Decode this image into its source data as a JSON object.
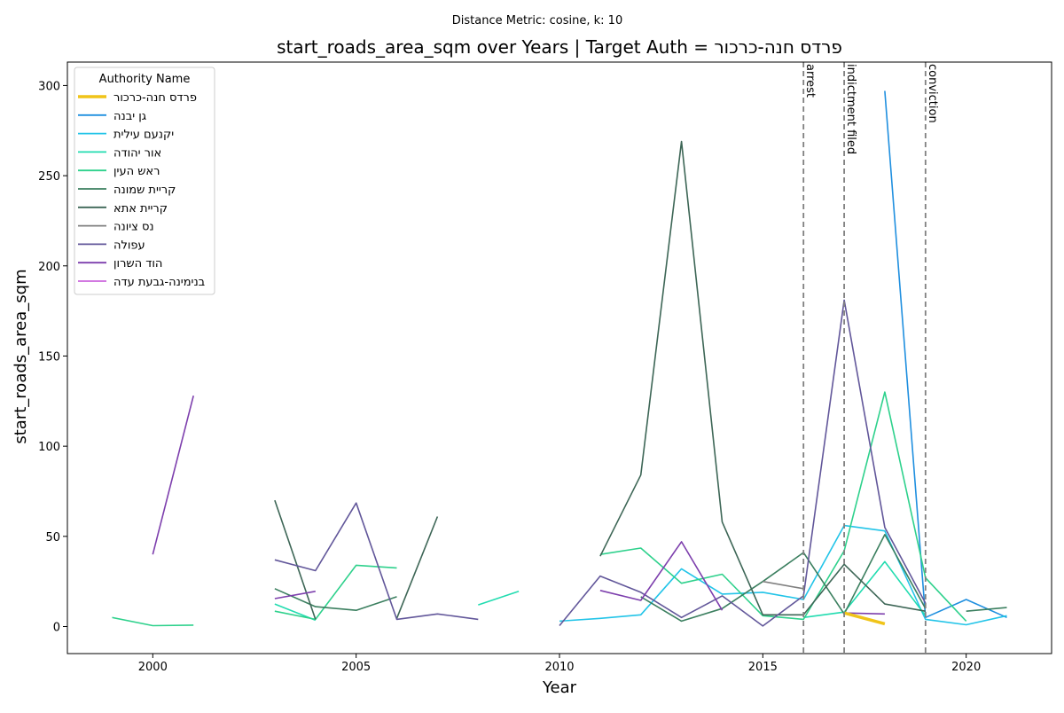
{
  "chart_data": {
    "type": "line",
    "suptitle": "Distance Metric: cosine, k: 10",
    "title": "start_roads_area_sqm over Years | Target Auth = פרדס חנה-כרכור",
    "xlabel": "Year",
    "ylabel": "start_roads_area_sqm",
    "xlim": [
      1997.9,
      2022.1
    ],
    "ylim": [
      -15,
      313
    ],
    "xticks": [
      2000,
      2005,
      2010,
      2015,
      2020
    ],
    "yticks": [
      0,
      50,
      100,
      150,
      200,
      250,
      300
    ],
    "grid": false,
    "legend": {
      "title": "Authority Name",
      "placement": "top-left"
    },
    "events": [
      {
        "x": 2016,
        "label": "arrest"
      },
      {
        "x": 2017,
        "label": "indictment filed"
      },
      {
        "x": 2019,
        "label": "conviction"
      }
    ],
    "series": [
      {
        "name": "פרדס חנה-כרכור",
        "color": "#f0c419",
        "emphasis": true,
        "segments": [
          [
            [
              2017,
              7.5
            ],
            [
              2018,
              1.5
            ]
          ]
        ]
      },
      {
        "name": "גן יבנה",
        "color": "#1f8fdf",
        "segments": [
          [
            [
              2018,
              297
            ],
            [
              2019,
              5
            ],
            [
              2020,
              15
            ],
            [
              2021,
              5
            ]
          ]
        ]
      },
      {
        "name": "יקנעם עילית",
        "color": "#22c4e8",
        "segments": [
          [
            [
              2010,
              3
            ],
            [
              2011,
              4.5
            ],
            [
              2012,
              6.5
            ],
            [
              2013,
              32
            ],
            [
              2014,
              18
            ],
            [
              2015,
              19
            ],
            [
              2016,
              15
            ],
            [
              2017,
              56
            ],
            [
              2018,
              53
            ],
            [
              2019,
              4
            ],
            [
              2020,
              1
            ],
            [
              2021,
              6
            ]
          ]
        ]
      },
      {
        "name": "אור יהודה",
        "color": "#22dcb0",
        "segments": [
          [
            [
              2003,
              12.5
            ],
            [
              2004,
              3.5
            ]
          ],
          [
            [
              2008,
              12
            ],
            [
              2009,
              19.5
            ]
          ],
          [
            [
              2016,
              5
            ],
            [
              2017,
              8
            ],
            [
              2018,
              36
            ],
            [
              2019,
              6
            ]
          ]
        ]
      },
      {
        "name": "ראש העין",
        "color": "#2ed18c",
        "segments": [
          [
            [
              1999,
              5
            ],
            [
              2000,
              0.5
            ],
            [
              2001,
              0.8
            ]
          ],
          [
            [
              2003,
              8.5
            ],
            [
              2004,
              4
            ],
            [
              2005,
              34
            ],
            [
              2006,
              32.5
            ]
          ],
          [
            [
              2011,
              40
            ],
            [
              2012,
              43.5
            ],
            [
              2013,
              24
            ],
            [
              2014,
              29
            ],
            [
              2015,
              6
            ],
            [
              2016,
              4
            ],
            [
              2017,
              42
            ],
            [
              2018,
              130
            ],
            [
              2019,
              27
            ],
            [
              2020,
              3
            ]
          ]
        ]
      },
      {
        "name": "קריית שמונה",
        "color": "#3b7f5f",
        "segments": [
          [
            [
              2003,
              21
            ],
            [
              2004,
              11
            ],
            [
              2005,
              9
            ],
            [
              2006,
              16.5
            ]
          ],
          [
            [
              2012,
              16.5
            ],
            [
              2013,
              3
            ],
            [
              2014,
              10
            ],
            [
              2015,
              25
            ],
            [
              2016,
              41
            ],
            [
              2017,
              7
            ],
            [
              2018,
              51
            ],
            [
              2019,
              10
            ]
          ],
          [
            [
              2020,
              8.5
            ],
            [
              2021,
              10.5
            ]
          ]
        ]
      },
      {
        "name": "קריית אתא",
        "color": "#3d6656",
        "segments": [
          [
            [
              2003,
              70
            ],
            [
              2004,
              4
            ]
          ],
          [
            [
              2006,
              4.5
            ],
            [
              2007,
              61
            ]
          ],
          [
            [
              2011,
              39
            ],
            [
              2012,
              84
            ],
            [
              2013,
              269
            ],
            [
              2014,
              58
            ],
            [
              2015,
              6.5
            ],
            [
              2016,
              6.5
            ],
            [
              2017,
              34.5
            ],
            [
              2018,
              12.5
            ],
            [
              2019,
              8.5
            ]
          ]
        ]
      },
      {
        "name": "נס ציונה",
        "color": "#808080",
        "segments": [
          [
            [
              2015,
              25
            ],
            [
              2016,
              21
            ]
          ]
        ]
      },
      {
        "name": "עפולה",
        "color": "#62579a",
        "segments": [
          [
            [
              2003,
              37
            ],
            [
              2004,
              31
            ],
            [
              2005,
              68.5
            ],
            [
              2006,
              4
            ],
            [
              2007,
              7
            ],
            [
              2008,
              4
            ]
          ],
          [
            [
              2010,
              0.5
            ],
            [
              2011,
              28
            ],
            [
              2012,
              19
            ],
            [
              2013,
              5
            ],
            [
              2014,
              17
            ],
            [
              2015,
              0.3
            ],
            [
              2016,
              17
            ],
            [
              2017,
              181
            ],
            [
              2018,
              55
            ],
            [
              2019,
              13
            ]
          ]
        ]
      },
      {
        "name": "הוד השרון",
        "color": "#7d3fad",
        "segments": [
          [
            [
              2000,
              40
            ],
            [
              2001,
              128
            ]
          ],
          [
            [
              2003,
              15.5
            ],
            [
              2004,
              19.5
            ]
          ],
          [
            [
              2011,
              20
            ],
            [
              2012,
              14.5
            ],
            [
              2013,
              47
            ],
            [
              2014,
              9
            ]
          ],
          [
            [
              2017,
              7.5
            ],
            [
              2018,
              7
            ]
          ]
        ]
      },
      {
        "name": "בנימינה-גבעת עדה",
        "color": "#cc66dd",
        "segments": []
      }
    ]
  }
}
